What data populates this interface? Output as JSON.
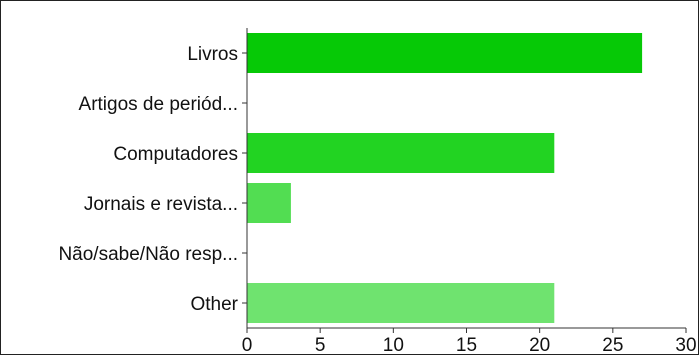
{
  "chart_data": {
    "type": "bar",
    "orientation": "horizontal",
    "categories": [
      "Livros",
      "Artigos de periód...",
      "Computadores",
      "Jornais e revista...",
      "Não/sabe/Não resp...",
      "Other"
    ],
    "values": [
      27,
      0,
      21,
      3,
      0,
      21
    ],
    "colors": [
      "#06c906",
      "#13ce13",
      "#22d322",
      "#52dd52",
      "#5ce05c",
      "#6fe36f"
    ],
    "xlim": [
      0,
      30
    ],
    "xticks": [
      0,
      5,
      10,
      15,
      20,
      25,
      30
    ],
    "grid": false,
    "title": "",
    "xlabel": "",
    "ylabel": ""
  }
}
